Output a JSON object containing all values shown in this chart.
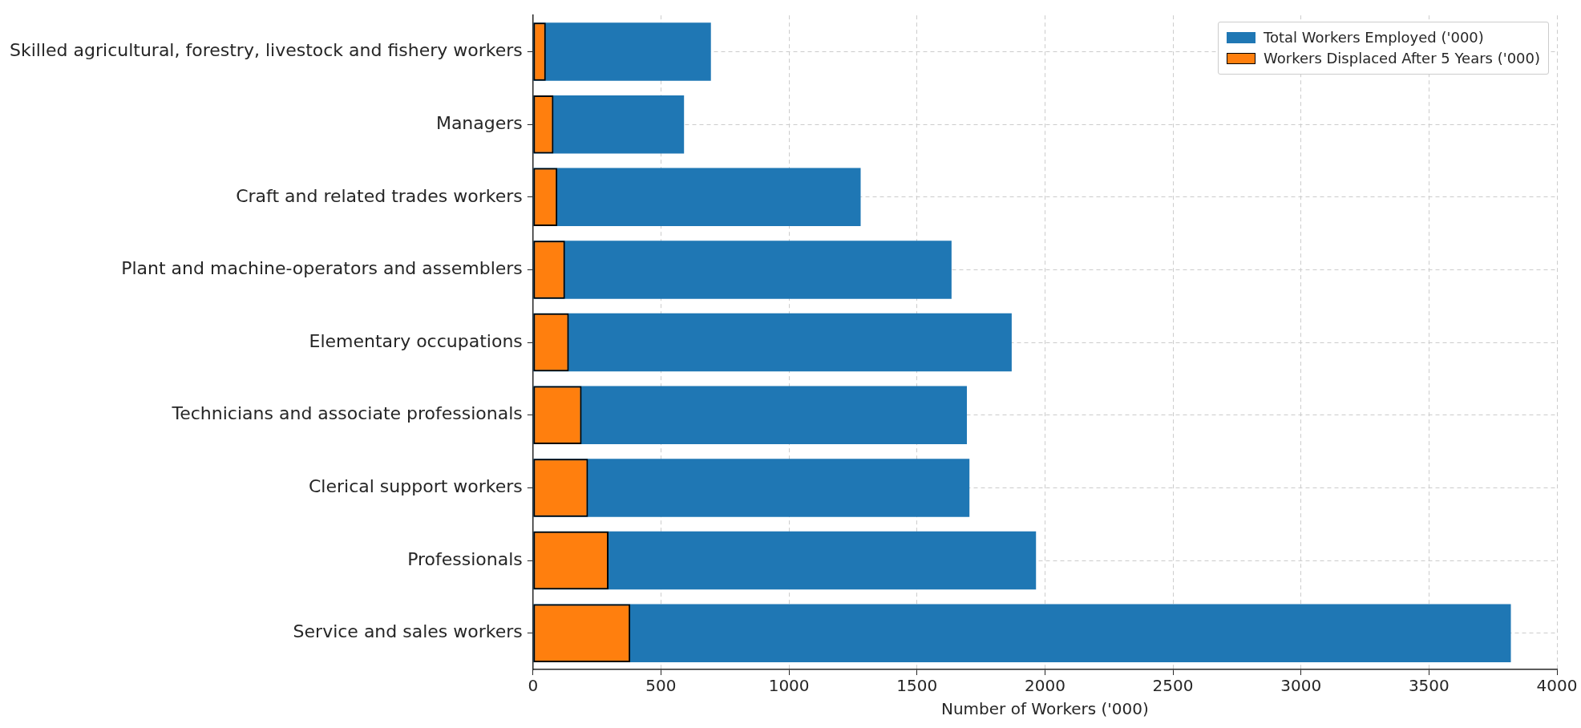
{
  "chart_data": {
    "type": "bar",
    "orientation": "horizontal",
    "categories": [
      "Skilled agricultural, forestry, livestock and fishery workers",
      "Managers",
      "Craft and related trades workers",
      "Plant and machine-operators and assemblers",
      "Elementary occupations",
      "Technicians and associate professionals",
      "Clerical support workers",
      "Professionals",
      "Service and sales workers"
    ],
    "series": [
      {
        "name": "Total Workers Employed ('000)",
        "color": "#1f77b4",
        "values": [
          695,
          590,
          1280,
          1635,
          1870,
          1695,
          1705,
          1965,
          3820
        ]
      },
      {
        "name": "Workers Displaced After 5 Years ('000)",
        "color": "#ff7f0e",
        "values": [
          50,
          80,
          95,
          125,
          140,
          190,
          215,
          295,
          380
        ]
      }
    ],
    "xlabel": "Number of Workers ('000)",
    "xlim": [
      0,
      4000
    ],
    "xticks": [
      0,
      500,
      1000,
      1500,
      2000,
      2500,
      3000,
      3500,
      4000
    ],
    "grid": true,
    "legend": "top right"
  }
}
